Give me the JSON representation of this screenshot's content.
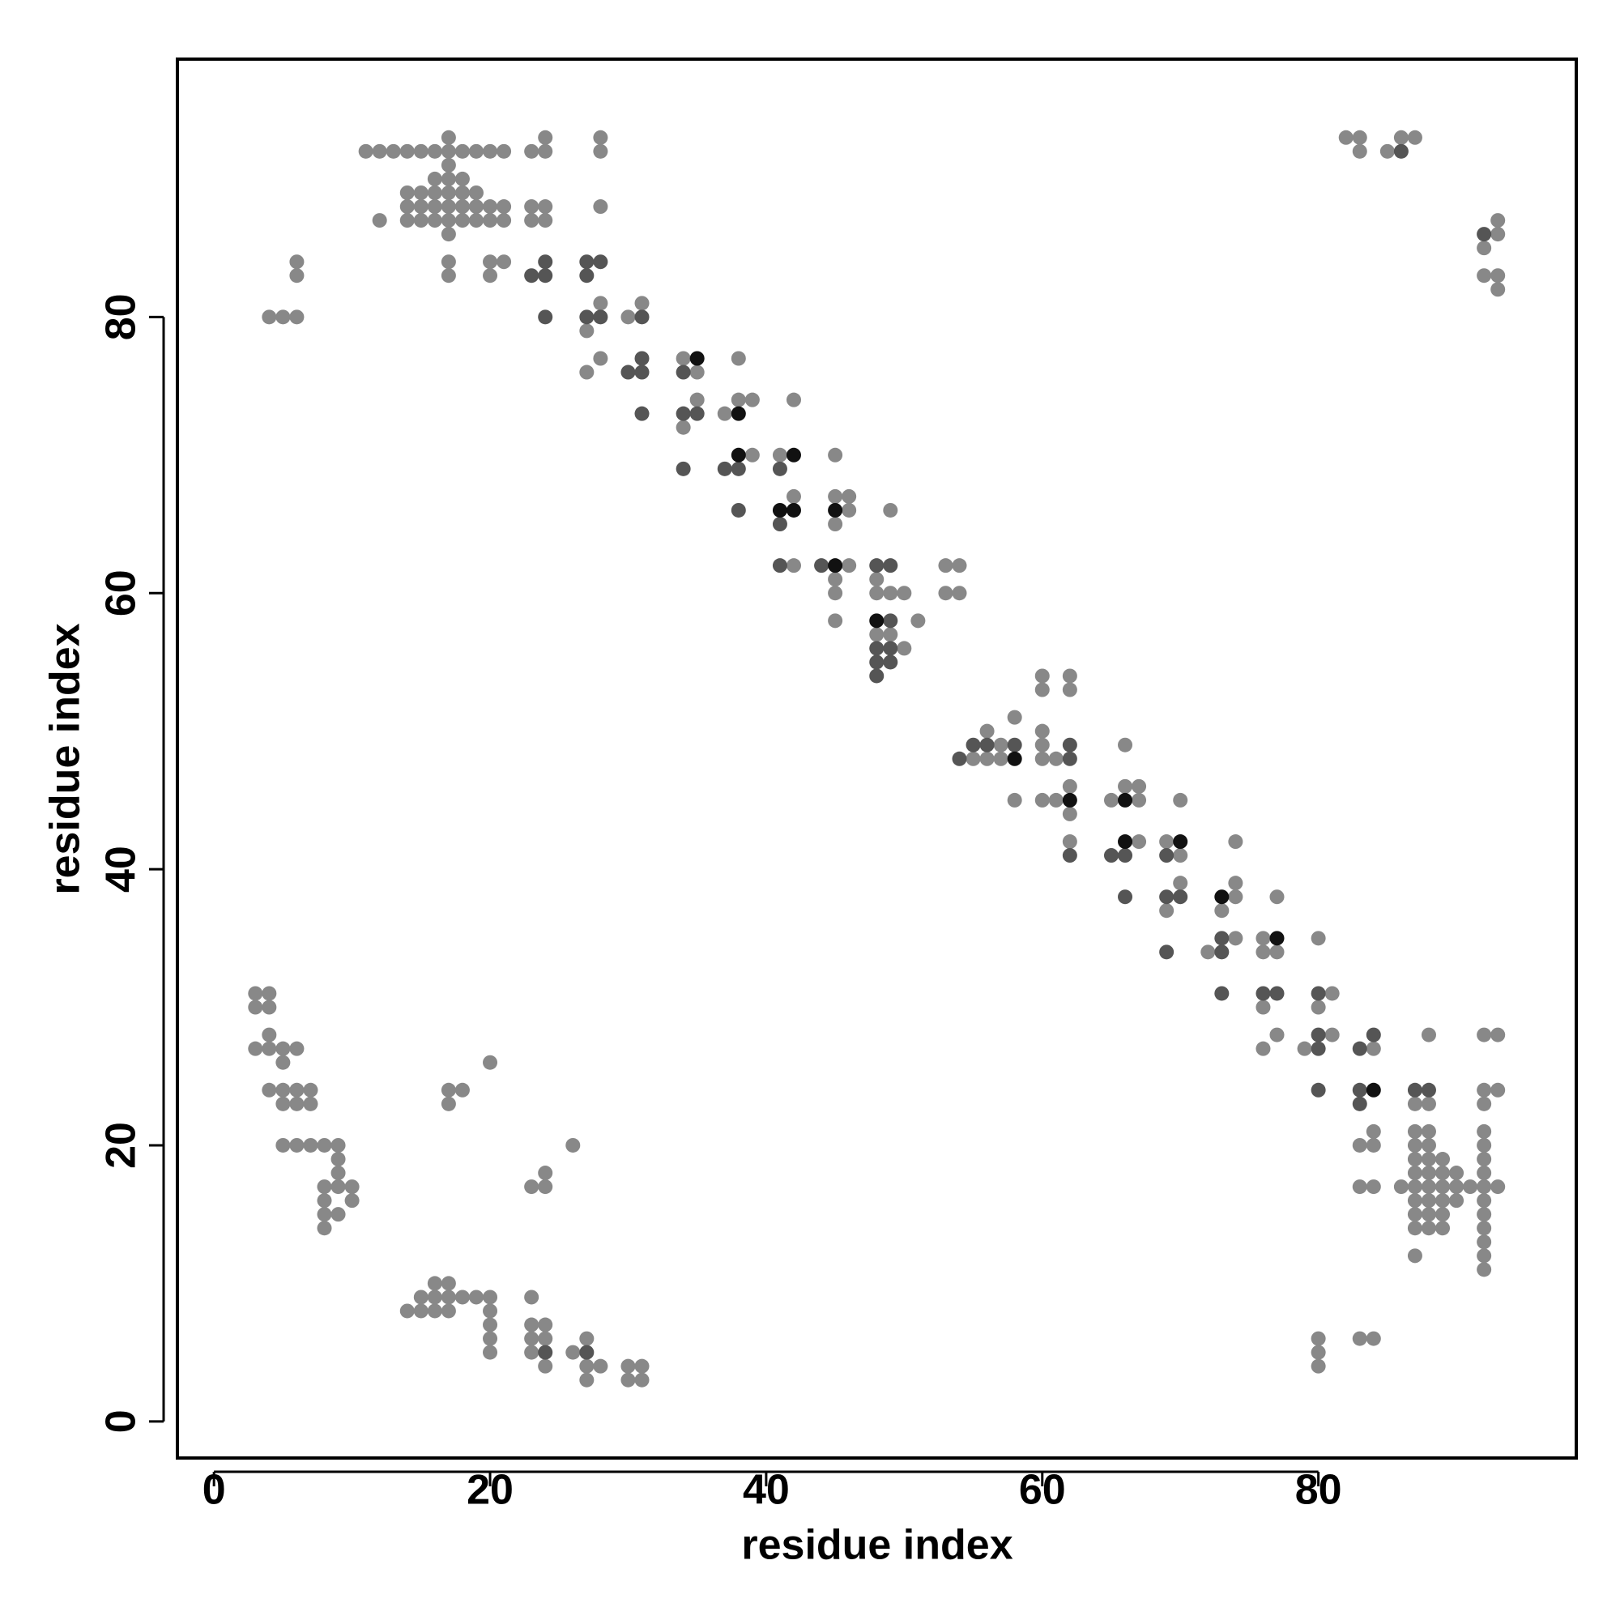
{
  "chart_data": {
    "type": "scatter",
    "xlabel": "residue index",
    "ylabel": "residue index",
    "xlim": [
      -2.65,
      98.68
    ],
    "ylim": [
      -2.65,
      98.68
    ],
    "xticks": [
      0,
      20,
      40,
      60,
      80
    ],
    "yticks": [
      0,
      20,
      40,
      60,
      80
    ],
    "series": [
      {
        "color": "#888888",
        "x": [
          11,
          12,
          13,
          14,
          15,
          16,
          17,
          18,
          19,
          20,
          21,
          23,
          24,
          28,
          17,
          24,
          28,
          82,
          83,
          86,
          87,
          83,
          85,
          17,
          16,
          17,
          18,
          14,
          15,
          16,
          17,
          18,
          19,
          14,
          15,
          16,
          17,
          18,
          19,
          20,
          21,
          23,
          24,
          28,
          12,
          14,
          15,
          16,
          17,
          18,
          19,
          20,
          21,
          23,
          24,
          93,
          17,
          93,
          92,
          6,
          17,
          20,
          21,
          6,
          17,
          20,
          92,
          93,
          93,
          28,
          31,
          4,
          5,
          6,
          30,
          27,
          28,
          34,
          38,
          27,
          35,
          35,
          38,
          39,
          42,
          37,
          34,
          39,
          41,
          45,
          42,
          45,
          46,
          46,
          49,
          45,
          42,
          46,
          53,
          54,
          45,
          48,
          45,
          48,
          49,
          50,
          53,
          54,
          45,
          51,
          48,
          49,
          50,
          60,
          62,
          60,
          62,
          58,
          56,
          60,
          57,
          60,
          66,
          55,
          56,
          57,
          60,
          61,
          62,
          66,
          67,
          58,
          60,
          61,
          65,
          67,
          70,
          62,
          62,
          67,
          69,
          74,
          70,
          70,
          74,
          74,
          77,
          69,
          73,
          74,
          76,
          80,
          72,
          76,
          77,
          3,
          4,
          81,
          3,
          4,
          76,
          80,
          4,
          77,
          81,
          88,
          92,
          93,
          3,
          4,
          5,
          6,
          76,
          79,
          84,
          5,
          20,
          4,
          5,
          6,
          7,
          17,
          18,
          92,
          93,
          5,
          6,
          7,
          17,
          87,
          88,
          92,
          84,
          87,
          88,
          92,
          5,
          6,
          7,
          8,
          9,
          26,
          83,
          84,
          87,
          88,
          92,
          9,
          87,
          88,
          89,
          92,
          9,
          24,
          87,
          88,
          89,
          90,
          92,
          8,
          9,
          10,
          23,
          24,
          83,
          84,
          86,
          87,
          88,
          89,
          90,
          91,
          92,
          93,
          8,
          10,
          87,
          88,
          89,
          90,
          92,
          8,
          9,
          87,
          88,
          89,
          92,
          8,
          87,
          88,
          89,
          92,
          92,
          87,
          92,
          92,
          16,
          17,
          15,
          16,
          17,
          18,
          19,
          20,
          23,
          14,
          15,
          16,
          17,
          20,
          20,
          23,
          24,
          20,
          23,
          24,
          27,
          80,
          83,
          84,
          20,
          23,
          26,
          80,
          24,
          27,
          28,
          30,
          31,
          80,
          27,
          30,
          31
        ],
        "y": [
          92,
          92,
          92,
          92,
          92,
          92,
          92,
          92,
          92,
          92,
          92,
          92,
          92,
          92,
          93,
          93,
          93,
          93,
          93,
          93,
          93,
          92,
          92,
          91,
          90,
          90,
          90,
          89,
          89,
          89,
          89,
          89,
          89,
          88,
          88,
          88,
          88,
          88,
          88,
          88,
          88,
          88,
          88,
          88,
          87,
          87,
          87,
          87,
          87,
          87,
          87,
          87,
          87,
          87,
          87,
          87,
          86,
          86,
          85,
          84,
          84,
          84,
          84,
          83,
          83,
          83,
          83,
          83,
          82,
          81,
          81,
          80,
          80,
          80,
          80,
          79,
          77,
          77,
          77,
          76,
          76,
          74,
          74,
          74,
          74,
          73,
          72,
          70,
          70,
          70,
          67,
          67,
          67,
          66,
          66,
          65,
          62,
          62,
          62,
          62,
          61,
          61,
          60,
          60,
          60,
          60,
          60,
          60,
          58,
          58,
          57,
          57,
          56,
          54,
          54,
          53,
          53,
          51,
          50,
          50,
          49,
          49,
          49,
          48,
          48,
          48,
          48,
          48,
          46,
          46,
          46,
          45,
          45,
          45,
          45,
          45,
          45,
          44,
          42,
          42,
          42,
          42,
          41,
          39,
          39,
          38,
          38,
          37,
          37,
          35,
          35,
          35,
          34,
          34,
          34,
          31,
          31,
          31,
          30,
          30,
          30,
          30,
          28,
          28,
          28,
          28,
          28,
          28,
          27,
          27,
          27,
          27,
          27,
          27,
          27,
          26,
          26,
          24,
          24,
          24,
          24,
          24,
          24,
          24,
          24,
          23,
          23,
          23,
          23,
          23,
          23,
          23,
          21,
          21,
          21,
          21,
          20,
          20,
          20,
          20,
          20,
          20,
          20,
          20,
          20,
          20,
          20,
          19,
          19,
          19,
          19,
          19,
          18,
          18,
          18,
          18,
          18,
          18,
          18,
          17,
          17,
          17,
          17,
          17,
          17,
          17,
          17,
          17,
          17,
          17,
          17,
          17,
          17,
          17,
          16,
          16,
          16,
          16,
          16,
          16,
          16,
          15,
          15,
          15,
          15,
          15,
          15,
          14,
          14,
          14,
          14,
          14,
          13,
          12,
          12,
          11,
          10,
          10,
          9,
          9,
          9,
          9,
          9,
          9,
          9,
          8,
          8,
          8,
          8,
          8,
          7,
          7,
          7,
          6,
          6,
          6,
          6,
          6,
          6,
          6,
          5,
          5,
          5,
          5,
          4,
          4,
          4,
          4,
          4,
          4,
          3,
          3,
          3
        ]
      },
      {
        "color": "#555555",
        "x": [
          86,
          92,
          24,
          27,
          28,
          23,
          24,
          27,
          24,
          27,
          28,
          31,
          31,
          30,
          31,
          34,
          31,
          34,
          35,
          34,
          37,
          38,
          41,
          38,
          41,
          41,
          44,
          48,
          49,
          49,
          48,
          49,
          48,
          49,
          48,
          55,
          56,
          58,
          62,
          54,
          62,
          62,
          65,
          66,
          69,
          66,
          69,
          70,
          73,
          69,
          73,
          73,
          76,
          77,
          80,
          80,
          84,
          80,
          83,
          80,
          83,
          87,
          88,
          83,
          24,
          27
        ],
        "y": [
          92,
          86,
          84,
          84,
          84,
          83,
          83,
          83,
          80,
          80,
          80,
          80,
          77,
          76,
          76,
          76,
          73,
          73,
          73,
          69,
          69,
          69,
          69,
          66,
          65,
          62,
          62,
          62,
          62,
          58,
          56,
          56,
          55,
          55,
          54,
          49,
          49,
          49,
          49,
          48,
          48,
          41,
          41,
          41,
          41,
          38,
          38,
          38,
          35,
          34,
          34,
          31,
          31,
          31,
          31,
          28,
          28,
          27,
          27,
          24,
          24,
          24,
          24,
          23,
          5,
          5
        ]
      },
      {
        "color": "#111111",
        "x": [
          35,
          38,
          38,
          42,
          41,
          42,
          45,
          45,
          48,
          58,
          62,
          66,
          66,
          70,
          73,
          77,
          84
        ],
        "y": [
          77,
          73,
          70,
          70,
          66,
          66,
          66,
          62,
          58,
          48,
          45,
          45,
          42,
          42,
          38,
          35,
          24
        ]
      }
    ]
  }
}
